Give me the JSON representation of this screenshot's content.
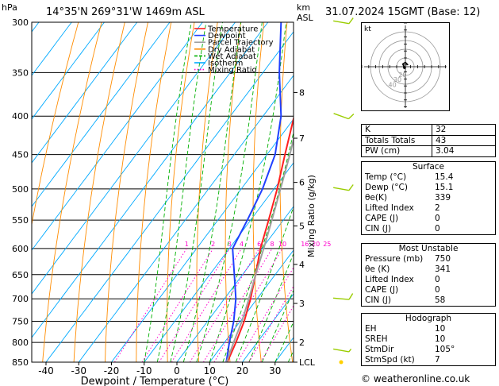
{
  "header": {
    "left_unit": "hPa",
    "location": "14°35'N  269°31'W  1469m  ASL",
    "km_label": "km",
    "asl_label": "ASL",
    "datetime": "31.07.2024  15GMT  (Base: 12)"
  },
  "legend": [
    {
      "label": "Temperature",
      "color": "#ff2020",
      "style": "solid"
    },
    {
      "label": "Dewpoint",
      "color": "#2040ff",
      "style": "solid"
    },
    {
      "label": "Parcel Trajectory",
      "color": "#a0a0a0",
      "style": "solid"
    },
    {
      "label": "Dry Adiabat",
      "color": "#ff8c00",
      "style": "solid"
    },
    {
      "label": "Wet Adiabat",
      "color": "#00b000",
      "style": "dashed"
    },
    {
      "label": "Isotherm",
      "color": "#00aaff",
      "style": "solid"
    },
    {
      "label": "Mixing Ratio",
      "color": "#ff00cc",
      "style": "dotted"
    }
  ],
  "chart_data": {
    "type": "line",
    "xlabel": "Dewpoint / Temperature (°C)",
    "ylabel_left": "hPa",
    "ylabel_right": "Mixing Ratio (g/kg)",
    "pressure_levels": [
      300,
      350,
      400,
      450,
      500,
      550,
      600,
      650,
      700,
      750,
      800,
      850
    ],
    "x_ticks": [
      -40,
      -30,
      -20,
      -10,
      0,
      10,
      20,
      30
    ],
    "xlim": [
      -45,
      35
    ],
    "ylim": [
      850,
      300
    ],
    "km_ticks": [
      {
        "label": "8",
        "p": 372
      },
      {
        "label": "7",
        "p": 428
      },
      {
        "label": "6",
        "p": 490
      },
      {
        "label": "5",
        "p": 560
      },
      {
        "label": "4",
        "p": 630
      },
      {
        "label": "3",
        "p": 710
      },
      {
        "label": "2",
        "p": 800
      },
      {
        "label": "LCL",
        "p": 850
      }
    ],
    "mixing_ratio_labels": [
      "1",
      "2",
      "3",
      "4",
      "6",
      "8",
      "10",
      "16",
      "20",
      "25"
    ],
    "mixing_ratio_values": [
      1,
      2,
      3,
      4,
      6,
      8,
      10,
      16,
      20,
      25
    ],
    "series": [
      {
        "name": "Temperature",
        "color": "#ff2020",
        "points": [
          [
            850,
            15.4
          ],
          [
            800,
            13.5
          ],
          [
            750,
            11.2
          ],
          [
            700,
            8.0
          ],
          [
            650,
            4.0
          ],
          [
            600,
            -0.5
          ],
          [
            550,
            -4.5
          ],
          [
            500,
            -9.0
          ],
          [
            450,
            -14.5
          ],
          [
            400,
            -20.5
          ],
          [
            350,
            -28.0
          ]
        ]
      },
      {
        "name": "Dewpoint",
        "color": "#2040ff",
        "points": [
          [
            850,
            15.1
          ],
          [
            800,
            11.5
          ],
          [
            750,
            8.0
          ],
          [
            700,
            3.5
          ],
          [
            650,
            -2.5
          ],
          [
            600,
            -9.0
          ],
          [
            550,
            -11.0
          ],
          [
            500,
            -13.5
          ],
          [
            450,
            -17.5
          ],
          [
            400,
            -24.5
          ],
          [
            350,
            -35.0
          ],
          [
            300,
            -46.0
          ]
        ]
      },
      {
        "name": "Parcel Trajectory",
        "color": "#a0a0a0",
        "points": [
          [
            850,
            15.2
          ],
          [
            800,
            12.8
          ],
          [
            750,
            10.5
          ],
          [
            700,
            7.5
          ],
          [
            650,
            4.0
          ],
          [
            600,
            0.5
          ],
          [
            550,
            -3.5
          ],
          [
            500,
            -8.0
          ],
          [
            450,
            -13.0
          ],
          [
            400,
            -19.0
          ],
          [
            350,
            -26.0
          ],
          [
            300,
            -35.0
          ]
        ]
      }
    ],
    "wind_barbs": [
      {
        "p": 300,
        "dir": 100,
        "kt": 10
      },
      {
        "p": 400,
        "dir": 110,
        "kt": 10
      },
      {
        "p": 500,
        "dir": 100,
        "kt": 10
      },
      {
        "p": 700,
        "dir": 95,
        "kt": 10
      },
      {
        "p": 820,
        "dir": 100,
        "kt": 5
      },
      {
        "p": 850,
        "dir": 0,
        "kt": 0
      }
    ]
  },
  "hodograph": {
    "unit_label": "kt",
    "ring_labels": [
      "20",
      "30",
      "40"
    ],
    "trace": [
      [
        3,
        2
      ],
      [
        0,
        5
      ],
      [
        -3,
        3
      ],
      [
        -1,
        -1
      ]
    ]
  },
  "indices": [
    {
      "label": "K",
      "value": "32"
    },
    {
      "label": "Totals Totals",
      "value": "43"
    },
    {
      "label": "PW (cm)",
      "value": "3.04"
    }
  ],
  "surface": {
    "title": "Surface",
    "rows": [
      {
        "label": "Temp (°C)",
        "value": "15.4"
      },
      {
        "label": "Dewp (°C)",
        "value": "15.1"
      },
      {
        "label": "θe(K)",
        "value": "339"
      },
      {
        "label": "Lifted Index",
        "value": "2"
      },
      {
        "label": "CAPE (J)",
        "value": "0"
      },
      {
        "label": "CIN (J)",
        "value": "0"
      }
    ]
  },
  "most_unstable": {
    "title": "Most Unstable",
    "rows": [
      {
        "label": "Pressure (mb)",
        "value": "750"
      },
      {
        "label": "θe (K)",
        "value": "341"
      },
      {
        "label": "Lifted Index",
        "value": "0"
      },
      {
        "label": "CAPE (J)",
        "value": "0"
      },
      {
        "label": "CIN (J)",
        "value": "58"
      }
    ]
  },
  "hodograph_box": {
    "title": "Hodograph",
    "rows": [
      {
        "label": "EH",
        "value": "10"
      },
      {
        "label": "SREH",
        "value": "10"
      },
      {
        "label": "StmDir",
        "value": "105°"
      },
      {
        "label": "StmSpd (kt)",
        "value": "7"
      }
    ]
  },
  "copyright": "© weatheronline.co.uk"
}
